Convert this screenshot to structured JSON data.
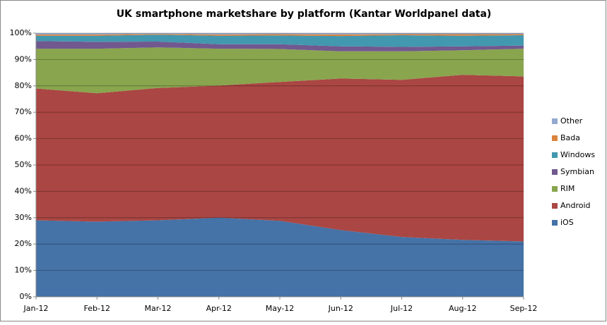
{
  "chart_data": {
    "type": "stacked-area",
    "title": "UK smartphone marketshare by platform (Kantar Worldpanel data)",
    "categories": [
      "Jan-12",
      "Feb-12",
      "Mar-12",
      "Apr-12",
      "May-12",
      "Jun-12",
      "Jul-12",
      "Aug-12",
      "Sep-12"
    ],
    "series": [
      {
        "name": "iOS",
        "color": "#4572a7",
        "values": [
          29,
          28.5,
          29,
          30,
          28.8,
          25.3,
          22.7,
          21.6,
          21
        ]
      },
      {
        "name": "Android",
        "color": "#aa4643",
        "values": [
          50,
          48.7,
          50.2,
          50.1,
          52.7,
          57.5,
          59.6,
          62.6,
          62.6
        ]
      },
      {
        "name": "RIM",
        "color": "#89a54e",
        "values": [
          15.1,
          16.9,
          15.4,
          14,
          12.5,
          10.3,
          10.8,
          9.3,
          10.5
        ]
      },
      {
        "name": "Symbian",
        "color": "#71588f",
        "values": [
          2.9,
          2.6,
          2.2,
          1.7,
          1.8,
          1.9,
          1.7,
          1.5,
          1.2
        ]
      },
      {
        "name": "Windows",
        "color": "#4198af",
        "values": [
          2,
          2.3,
          2.6,
          3.2,
          3.3,
          3.9,
          4.4,
          4,
          3.9
        ]
      },
      {
        "name": "Bada",
        "color": "#db843d",
        "values": [
          0.5,
          0.5,
          0.3,
          0.5,
          0.5,
          0.6,
          0.4,
          0.6,
          0.4
        ]
      },
      {
        "name": "Other",
        "color": "#93a9cf",
        "values": [
          0.5,
          0.5,
          0.3,
          0.5,
          0.4,
          0.5,
          0.4,
          0.4,
          0.4
        ]
      }
    ],
    "ylim": [
      0,
      100
    ],
    "yticks": [
      {
        "value": 0,
        "label": "0%"
      },
      {
        "value": 10,
        "label": "10%"
      },
      {
        "value": 20,
        "label": "20%"
      },
      {
        "value": 30,
        "label": "30%"
      },
      {
        "value": 40,
        "label": "40%"
      },
      {
        "value": 50,
        "label": "50%"
      },
      {
        "value": 60,
        "label": "60%"
      },
      {
        "value": 70,
        "label": "70%"
      },
      {
        "value": 80,
        "label": "80%"
      },
      {
        "value": 90,
        "label": "90%"
      },
      {
        "value": 100,
        "label": "100%"
      }
    ],
    "grid": true,
    "legend": "right"
  }
}
